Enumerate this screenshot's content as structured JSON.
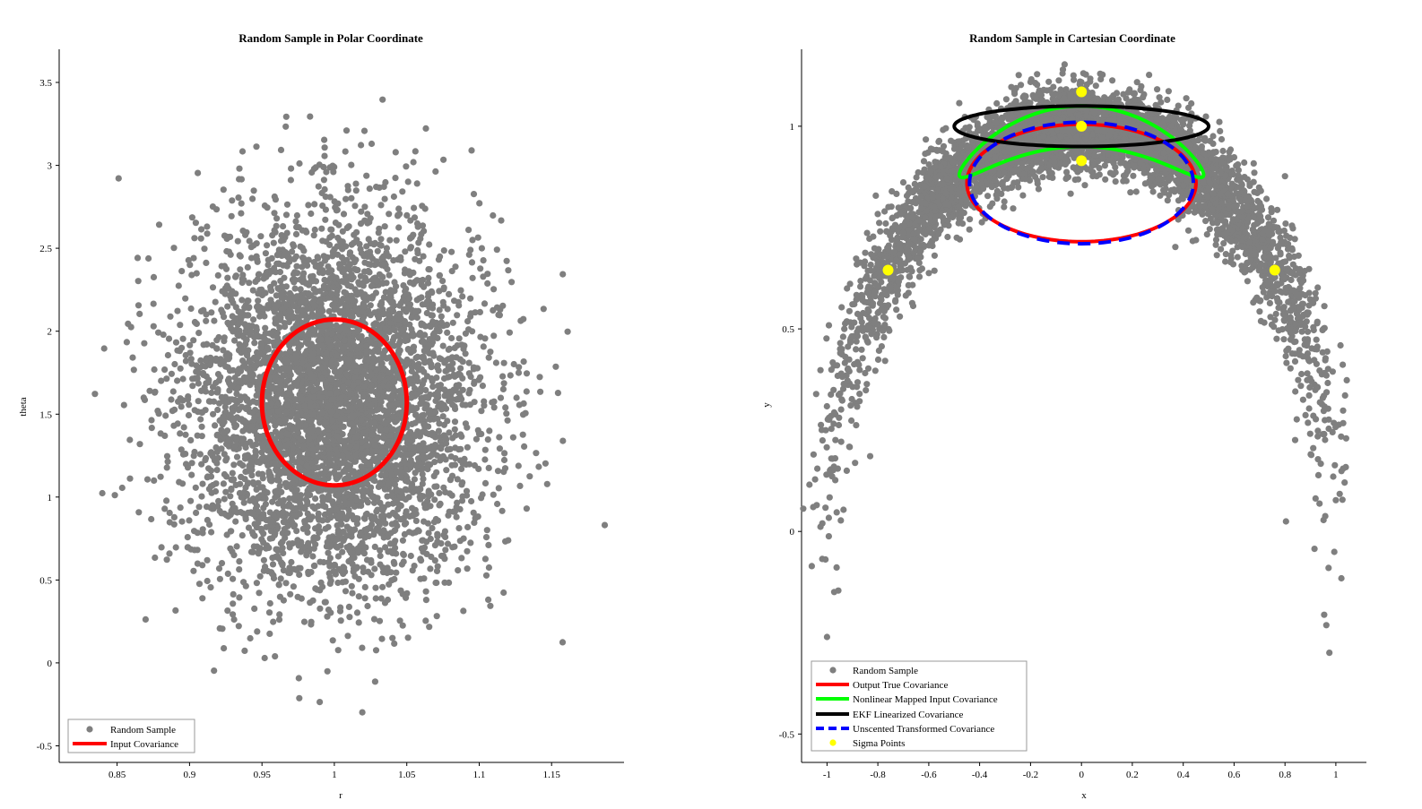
{
  "chart_data": [
    {
      "type": "scatter",
      "title": "Random Sample in Polar Coordinate",
      "xlabel": "r",
      "ylabel": "theta",
      "xlim": [
        0.81,
        1.2
      ],
      "ylim": [
        -0.6,
        3.7
      ],
      "xticks": [
        0.85,
        0.9,
        0.95,
        1,
        1.05,
        1.1,
        1.15
      ],
      "xtick_labels": [
        "0.85",
        "0.9",
        "0.95",
        "1",
        "1.05",
        "1.1",
        "1.15"
      ],
      "yticks": [
        -0.5,
        0,
        0.5,
        1,
        1.5,
        2,
        2.5,
        3,
        3.5
      ],
      "ytick_labels": [
        "-0.5",
        "0",
        "0.5",
        "1",
        "1.5",
        "2",
        "2.5",
        "3",
        "3.5"
      ],
      "grid": false,
      "legend_position": "bottom-left",
      "sample": {
        "distribution": "normal",
        "r_mean": 1.0,
        "r_std": 0.05,
        "theta_mean": 1.5708,
        "theta_std": 0.55,
        "count": 5000,
        "color": "#7f7f7f"
      },
      "series": [
        {
          "name": "Random Sample",
          "kind": "scatter",
          "color": "#7f7f7f"
        },
        {
          "name": "Input Covariance",
          "kind": "ellipse",
          "color": "#ff0000",
          "center": [
            1.0,
            1.5708
          ],
          "radii": [
            0.05,
            0.5
          ],
          "dashed": false
        }
      ]
    },
    {
      "type": "scatter",
      "title": "Random Sample in Cartesian Coordinate",
      "xlabel": "x",
      "ylabel": "y",
      "xlim": [
        -1.1,
        1.12
      ],
      "ylim": [
        -0.57,
        1.19
      ],
      "xticks": [
        -1,
        -0.8,
        -0.6,
        -0.4,
        -0.2,
        0,
        0.2,
        0.4,
        0.6,
        0.8,
        1
      ],
      "xtick_labels": [
        "-1",
        "-0.8",
        "-0.6",
        "-0.4",
        "-0.2",
        "0",
        "0.2",
        "0.4",
        "0.6",
        "0.8",
        "1"
      ],
      "yticks": [
        -0.5,
        0,
        0.5,
        1
      ],
      "ytick_labels": [
        "-0.5",
        "0",
        "0.5",
        "1"
      ],
      "grid": false,
      "legend_position": "bottom-left",
      "series": [
        {
          "name": "Random Sample",
          "kind": "scatter",
          "color": "#7f7f7f"
        },
        {
          "name": "Output True Covariance",
          "kind": "ellipse",
          "color": "#ff0000",
          "center": [
            0.0,
            0.86
          ],
          "radii": [
            0.45,
            0.145
          ],
          "dashed": false
        },
        {
          "name": "Nonlinear Mapped Input Covariance",
          "kind": "curve",
          "color": "#00ff00",
          "theta_center": 1.5708,
          "theta_half_range": 0.5,
          "r_center": 1.0,
          "r_half_range": 0.05
        },
        {
          "name": "EKF Linearized Covariance",
          "kind": "ellipse",
          "color": "#000000",
          "center": [
            0.0,
            1.0
          ],
          "radii": [
            0.5,
            0.05
          ],
          "dashed": false
        },
        {
          "name": "Unscented Transformed Covariance",
          "kind": "ellipse",
          "color": "#0000ff",
          "center": [
            0.0,
            0.86
          ],
          "radii": [
            0.44,
            0.15
          ],
          "dashed": true
        },
        {
          "name": "Sigma Points",
          "kind": "points",
          "color": "#ffff00",
          "x": [
            0.0,
            0.0,
            0.0,
            -0.76,
            0.76
          ],
          "y": [
            1.0,
            1.085,
            0.915,
            0.645,
            0.645
          ]
        }
      ]
    }
  ]
}
